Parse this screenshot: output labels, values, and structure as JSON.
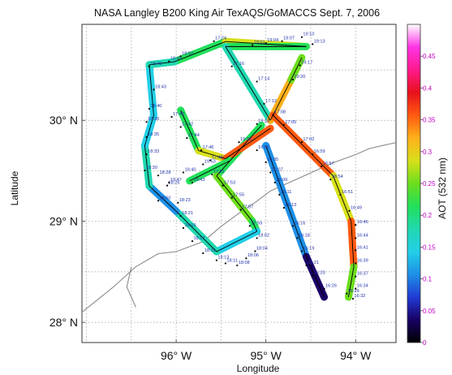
{
  "title": "NASA Langley B200 King Air TexAQS/GoMACCS Sept. 7, 2006",
  "xlabel": "Longitude",
  "ylabel": "Latitude",
  "x_ticks": [
    {
      "lon": -96,
      "label": "96° W"
    },
    {
      "lon": -95,
      "label": "95° W"
    },
    {
      "lon": -94,
      "label": "94° W"
    }
  ],
  "y_ticks": [
    {
      "lat": 30,
      "label": "30° N"
    },
    {
      "lat": 29,
      "label": "29° N"
    },
    {
      "lat": 28,
      "label": "28° N"
    }
  ],
  "colorbar": {
    "label": "AOT (532 nm)",
    "min": 0,
    "max": 0.5,
    "ticks": [
      "0",
      "0.05",
      "0.1",
      "0.15",
      "0.2",
      "0.25",
      "0.3",
      "0.35",
      "0.4",
      "0.45"
    ],
    "colors": [
      "#000000",
      "#1a0066",
      "#1f3bd6",
      "#1e90e6",
      "#22cfe8",
      "#20d8b0",
      "#22e05a",
      "#6cde1c",
      "#d8e01a",
      "#ffb01a",
      "#ff5a10",
      "#e8101c",
      "#ff1a8c",
      "#ff33e6",
      "#ffffff"
    ]
  },
  "map": {
    "lon_min": -97.05,
    "lon_max": -93.55,
    "lat_min": 27.8,
    "lat_max": 30.95
  },
  "track_segments": [
    {
      "start": [
        -96.02,
        30.58
      ],
      "end": [
        -95.45,
        30.78
      ],
      "aot": 0.23
    },
    {
      "start": [
        -95.45,
        30.78
      ],
      "end": [
        -94.55,
        30.73
      ],
      "aot": 0.27
    },
    {
      "start": [
        -94.55,
        30.73
      ],
      "end": [
        -95.45,
        30.73
      ],
      "aot": 0.2
    },
    {
      "start": [
        -95.45,
        30.73
      ],
      "end": [
        -94.95,
        30.0
      ],
      "aot": 0.17
    },
    {
      "start": [
        -94.95,
        30.0
      ],
      "end": [
        -94.72,
        30.4
      ],
      "aot": 0.32
    },
    {
      "start": [
        -94.72,
        30.4
      ],
      "end": [
        -94.6,
        30.62
      ],
      "aot": 0.25
    },
    {
      "start": [
        -94.92,
        30.05
      ],
      "end": [
        -94.25,
        29.45
      ],
      "aot": 0.34
    },
    {
      "start": [
        -94.25,
        29.45
      ],
      "end": [
        -94.05,
        29.0
      ],
      "aot": 0.28
    },
    {
      "start": [
        -94.05,
        29.0
      ],
      "end": [
        -94.02,
        28.55
      ],
      "aot": 0.36
    },
    {
      "start": [
        -94.02,
        28.55
      ],
      "end": [
        -94.08,
        28.25
      ],
      "aot": 0.25
    },
    {
      "start": [
        -95.0,
        29.75
      ],
      "end": [
        -94.55,
        28.65
      ],
      "aot": 0.12
    },
    {
      "start": [
        -94.55,
        28.65
      ],
      "end": [
        -94.35,
        28.25
      ],
      "aot": 0.05
    },
    {
      "start": [
        -95.05,
        29.95
      ],
      "end": [
        -95.55,
        29.45
      ],
      "aot": 0.22
    },
    {
      "start": [
        -95.55,
        29.45
      ],
      "end": [
        -95.15,
        29.0
      ],
      "aot": 0.25
    },
    {
      "start": [
        -95.15,
        29.0
      ],
      "end": [
        -95.1,
        28.9
      ],
      "aot": 0.2
    },
    {
      "start": [
        -95.1,
        28.9
      ],
      "end": [
        -95.55,
        28.7
      ],
      "aot": 0.15
    },
    {
      "start": [
        -95.55,
        28.7
      ],
      "end": [
        -96.0,
        29.1
      ],
      "aot": 0.17
    },
    {
      "start": [
        -96.0,
        29.1
      ],
      "end": [
        -96.3,
        29.35
      ],
      "aot": 0.12
    },
    {
      "start": [
        -96.3,
        29.35
      ],
      "end": [
        -96.35,
        29.75
      ],
      "aot": 0.18
    },
    {
      "start": [
        -96.35,
        29.75
      ],
      "end": [
        -96.25,
        30.05
      ],
      "aot": 0.14
    },
    {
      "start": [
        -96.25,
        30.05
      ],
      "end": [
        -96.3,
        30.55
      ],
      "aot": 0.15
    },
    {
      "start": [
        -96.3,
        30.55
      ],
      "end": [
        -96.02,
        30.58
      ],
      "aot": 0.17
    },
    {
      "start": [
        -95.95,
        30.1
      ],
      "end": [
        -95.75,
        29.7
      ],
      "aot": 0.21
    },
    {
      "start": [
        -95.75,
        29.7
      ],
      "end": [
        -95.45,
        29.62
      ],
      "aot": 0.27
    },
    {
      "start": [
        -95.45,
        29.62
      ],
      "end": [
        -94.95,
        29.92
      ],
      "aot": 0.35
    },
    {
      "start": [
        -95.85,
        29.4
      ],
      "end": [
        -95.4,
        29.6
      ],
      "aot": 0.22
    }
  ],
  "time_labels": [
    {
      "text": "17:24",
      "lon": -95.58,
      "lat": 30.8
    },
    {
      "text": "19:01",
      "lon": -95.15,
      "lat": 30.76
    },
    {
      "text": "19:04",
      "lon": -95.0,
      "lat": 30.78
    },
    {
      "text": "19:07",
      "lon": -94.82,
      "lat": 30.8
    },
    {
      "text": "19:10",
      "lon": -94.6,
      "lat": 30.84
    },
    {
      "text": "19:13",
      "lon": -94.48,
      "lat": 30.77
    },
    {
      "text": "19:17",
      "lon": -94.62,
      "lat": 30.56
    },
    {
      "text": "19:20",
      "lon": -94.7,
      "lat": 30.42
    },
    {
      "text": "18:52",
      "lon": -95.95,
      "lat": 30.65
    },
    {
      "text": "18:49",
      "lon": -96.08,
      "lat": 30.6
    },
    {
      "text": "18:46",
      "lon": -96.3,
      "lat": 30.55
    },
    {
      "text": "17:16",
      "lon": -95.38,
      "lat": 30.55
    },
    {
      "text": "17:14",
      "lon": -95.1,
      "lat": 30.4
    },
    {
      "text": "17:12",
      "lon": -95.02,
      "lat": 30.18
    },
    {
      "text": "17:08",
      "lon": -94.92,
      "lat": 30.07
    },
    {
      "text": "17:05",
      "lon": -94.8,
      "lat": 29.97
    },
    {
      "text": "17:02",
      "lon": -94.6,
      "lat": 29.8
    },
    {
      "text": "16:59",
      "lon": -94.48,
      "lat": 29.68
    },
    {
      "text": "16:57",
      "lon": -94.38,
      "lat": 29.56
    },
    {
      "text": "16:54",
      "lon": -94.28,
      "lat": 29.43
    },
    {
      "text": "16:51",
      "lon": -94.17,
      "lat": 29.28
    },
    {
      "text": "16:49",
      "lon": -94.07,
      "lat": 29.12
    },
    {
      "text": "16:46",
      "lon": -94.0,
      "lat": 28.98
    },
    {
      "text": "16:44",
      "lon": -94.0,
      "lat": 28.85
    },
    {
      "text": "16:41",
      "lon": -94.0,
      "lat": 28.73
    },
    {
      "text": "16:39",
      "lon": -94.0,
      "lat": 28.6
    },
    {
      "text": "16:37",
      "lon": -94.0,
      "lat": 28.47
    },
    {
      "text": "16:34",
      "lon": -94.0,
      "lat": 28.35
    },
    {
      "text": "16:32",
      "lon": -94.03,
      "lat": 28.25
    },
    {
      "text": "16:29",
      "lon": -94.1,
      "lat": 28.3
    },
    {
      "text": "19:18",
      "lon": -95.1,
      "lat": 29.98
    },
    {
      "text": "19:36",
      "lon": -95.3,
      "lat": 29.8
    },
    {
      "text": "16:02",
      "lon": -95.1,
      "lat": 29.72
    },
    {
      "text": "16:05",
      "lon": -95.0,
      "lat": 29.6
    },
    {
      "text": "16:07",
      "lon": -94.95,
      "lat": 29.5
    },
    {
      "text": "16:09",
      "lon": -94.9,
      "lat": 29.4
    },
    {
      "text": "16:11",
      "lon": -94.85,
      "lat": 29.28
    },
    {
      "text": "16:13",
      "lon": -94.8,
      "lat": 29.15
    },
    {
      "text": "16:16",
      "lon": -94.7,
      "lat": 28.97
    },
    {
      "text": "16:18",
      "lon": -94.65,
      "lat": 28.85
    },
    {
      "text": "16:19",
      "lon": -94.6,
      "lat": 28.72
    },
    {
      "text": "16:21",
      "lon": -94.55,
      "lat": 28.58
    },
    {
      "text": "16:23",
      "lon": -94.48,
      "lat": 28.48
    },
    {
      "text": "16:26",
      "lon": -94.35,
      "lat": 28.35
    },
    {
      "text": "17:40",
      "lon": -96.05,
      "lat": 30.05
    },
    {
      "text": "17:42",
      "lon": -95.95,
      "lat": 29.95
    },
    {
      "text": "17:44",
      "lon": -95.88,
      "lat": 29.84
    },
    {
      "text": "17:46",
      "lon": -95.72,
      "lat": 29.72
    },
    {
      "text": "17:48",
      "lon": -95.62,
      "lat": 29.62
    },
    {
      "text": "17:51",
      "lon": -95.6,
      "lat": 29.48
    },
    {
      "text": "17:53",
      "lon": -95.48,
      "lat": 29.37
    },
    {
      "text": "17:55",
      "lon": -95.38,
      "lat": 29.25
    },
    {
      "text": "17:57",
      "lon": -95.28,
      "lat": 29.13
    },
    {
      "text": "17:59",
      "lon": -95.18,
      "lat": 28.97
    },
    {
      "text": "18:02",
      "lon": -95.1,
      "lat": 28.85
    },
    {
      "text": "18:04",
      "lon": -95.12,
      "lat": 28.72
    },
    {
      "text": "19:40",
      "lon": -95.92,
      "lat": 29.5
    },
    {
      "text": "19:43",
      "lon": -95.82,
      "lat": 29.4
    },
    {
      "text": "19:47",
      "lon": -96.08,
      "lat": 29.4
    },
    {
      "text": "19:50",
      "lon": -96.2,
      "lat": 29.22
    },
    {
      "text": "19:53",
      "lon": -95.7,
      "lat": 29.58
    },
    {
      "text": "18:06",
      "lon": -95.22,
      "lat": 28.65
    },
    {
      "text": "18:08",
      "lon": -95.32,
      "lat": 28.58
    },
    {
      "text": "18:11",
      "lon": -95.45,
      "lat": 28.6
    },
    {
      "text": "18:13",
      "lon": -95.55,
      "lat": 28.63
    },
    {
      "text": "18:15",
      "lon": -95.7,
      "lat": 28.7
    },
    {
      "text": "18:17",
      "lon": -95.82,
      "lat": 28.82
    },
    {
      "text": "18:19",
      "lon": -95.92,
      "lat": 28.95
    },
    {
      "text": "18:21",
      "lon": -95.95,
      "lat": 29.07
    },
    {
      "text": "18:23",
      "lon": -95.98,
      "lat": 29.2
    },
    {
      "text": "18:26",
      "lon": -96.1,
      "lat": 29.37
    },
    {
      "text": "18:28",
      "lon": -96.2,
      "lat": 29.47
    },
    {
      "text": "18:30",
      "lon": -96.35,
      "lat": 29.52
    },
    {
      "text": "18:33",
      "lon": -96.33,
      "lat": 29.68
    },
    {
      "text": "18:35",
      "lon": -96.33,
      "lat": 29.85
    },
    {
      "text": "18:38",
      "lon": -96.33,
      "lat": 30.0
    },
    {
      "text": "18:40",
      "lon": -96.3,
      "lat": 30.13
    },
    {
      "text": "18:43",
      "lon": -96.25,
      "lat": 30.32
    }
  ],
  "coastline": [
    [
      -97.05,
      28.1
    ],
    [
      -96.7,
      28.35
    ],
    [
      -96.45,
      28.55
    ],
    [
      -96.2,
      28.68
    ],
    [
      -96.0,
      28.7
    ],
    [
      -95.7,
      28.8
    ],
    [
      -95.5,
      28.95
    ],
    [
      -95.3,
      29.08
    ],
    [
      -95.1,
      29.2
    ],
    [
      -94.95,
      29.3
    ],
    [
      -94.75,
      29.38
    ],
    [
      -94.5,
      29.48
    ],
    [
      -94.25,
      29.58
    ],
    [
      -94.0,
      29.66
    ],
    [
      -93.85,
      29.72
    ],
    [
      -93.7,
      29.75
    ],
    [
      -93.55,
      29.78
    ]
  ],
  "coast_inlet": [
    [
      -96.5,
      28.55
    ],
    [
      -96.55,
      28.35
    ],
    [
      -96.45,
      28.15
    ]
  ]
}
